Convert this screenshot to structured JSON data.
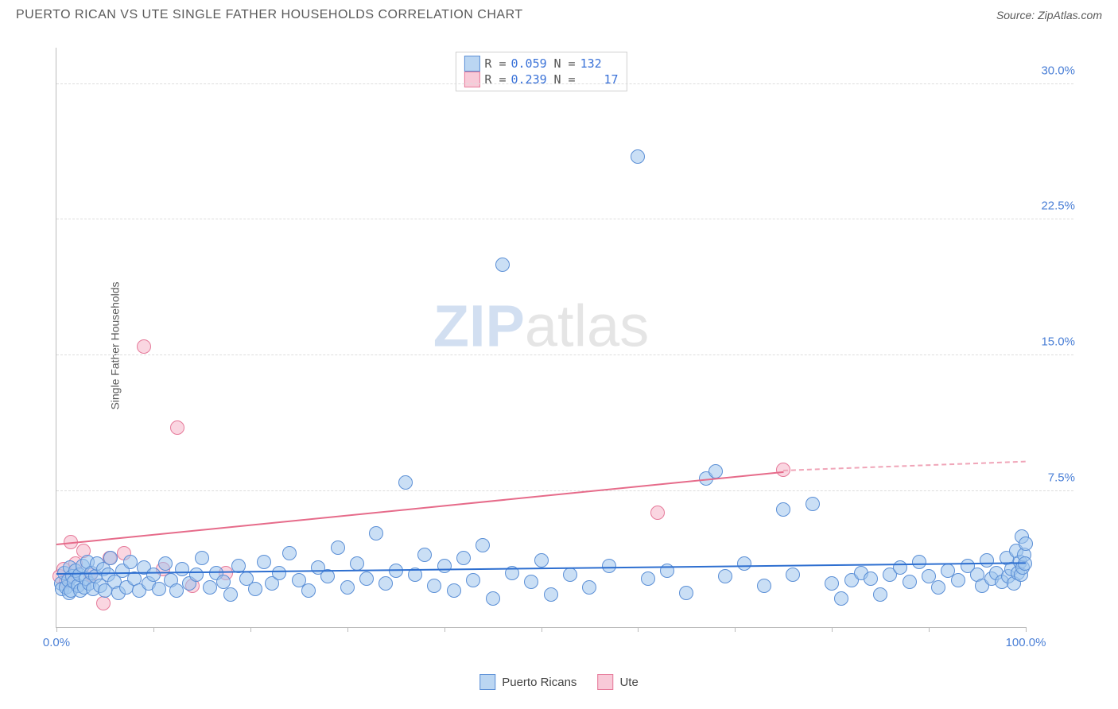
{
  "header": {
    "title": "PUERTO RICAN VS UTE SINGLE FATHER HOUSEHOLDS CORRELATION CHART",
    "source_prefix": "Source: ",
    "source": "ZipAtlas.com"
  },
  "watermark": {
    "bold": "ZIP",
    "light": "atlas"
  },
  "chart": {
    "type": "scatter",
    "ylabel": "Single Father Households",
    "xlim": [
      0,
      100
    ],
    "ylim": [
      0,
      32
    ],
    "y_ticks": [
      7.5,
      15.0,
      22.5,
      30.0
    ],
    "y_tick_labels": [
      "7.5%",
      "15.0%",
      "22.5%",
      "30.0%"
    ],
    "x_ticks": [
      0,
      10,
      20,
      30,
      40,
      50,
      60,
      70,
      80,
      90,
      100
    ],
    "x_tick_labels": {
      "0": "0.0%",
      "100": "100.0%"
    },
    "background_color": "#ffffff",
    "grid_color": "#dddddd",
    "series_a": {
      "label": "Puerto Ricans",
      "color_fill": "#9ec5ec",
      "color_stroke": "#5b8fd6",
      "marker_radius": 8,
      "R": "0.059",
      "N": "132",
      "trend": {
        "x0": 0,
        "y0": 2.9,
        "x1": 100,
        "y1": 3.5,
        "color": "#2e6fd0"
      },
      "points": [
        [
          0.5,
          2.4
        ],
        [
          0.6,
          2.1
        ],
        [
          0.8,
          3.0
        ],
        [
          1.0,
          2.2
        ],
        [
          1.2,
          2.6
        ],
        [
          1.3,
          1.9
        ],
        [
          1.4,
          3.3
        ],
        [
          1.5,
          2.0
        ],
        [
          1.6,
          2.8
        ],
        [
          1.8,
          2.5
        ],
        [
          2.0,
          3.1
        ],
        [
          2.2,
          2.3
        ],
        [
          2.4,
          2.9
        ],
        [
          2.5,
          2.0
        ],
        [
          2.7,
          3.4
        ],
        [
          2.9,
          2.2
        ],
        [
          3.0,
          2.7
        ],
        [
          3.2,
          3.6
        ],
        [
          3.4,
          2.4
        ],
        [
          3.6,
          3.0
        ],
        [
          3.8,
          2.1
        ],
        [
          4.0,
          2.8
        ],
        [
          4.2,
          3.5
        ],
        [
          4.5,
          2.3
        ],
        [
          4.8,
          3.2
        ],
        [
          5.0,
          2.0
        ],
        [
          5.3,
          2.9
        ],
        [
          5.6,
          3.8
        ],
        [
          6.0,
          2.5
        ],
        [
          6.4,
          1.9
        ],
        [
          6.8,
          3.1
        ],
        [
          7.2,
          2.2
        ],
        [
          7.6,
          3.6
        ],
        [
          8.0,
          2.7
        ],
        [
          8.5,
          2.0
        ],
        [
          9.0,
          3.3
        ],
        [
          9.5,
          2.4
        ],
        [
          10.0,
          2.9
        ],
        [
          10.6,
          2.1
        ],
        [
          11.2,
          3.5
        ],
        [
          11.8,
          2.6
        ],
        [
          12.4,
          2.0
        ],
        [
          13.0,
          3.2
        ],
        [
          13.7,
          2.4
        ],
        [
          14.4,
          2.9
        ],
        [
          15.0,
          3.8
        ],
        [
          15.8,
          2.2
        ],
        [
          16.5,
          3.0
        ],
        [
          17.2,
          2.5
        ],
        [
          18.0,
          1.8
        ],
        [
          18.8,
          3.4
        ],
        [
          19.6,
          2.7
        ],
        [
          20.5,
          2.1
        ],
        [
          21.4,
          3.6
        ],
        [
          22.2,
          2.4
        ],
        [
          23.0,
          3.0
        ],
        [
          24.0,
          4.1
        ],
        [
          25.0,
          2.6
        ],
        [
          26.0,
          2.0
        ],
        [
          27.0,
          3.3
        ],
        [
          28.0,
          2.8
        ],
        [
          29.0,
          4.4
        ],
        [
          30.0,
          2.2
        ],
        [
          31.0,
          3.5
        ],
        [
          32.0,
          2.7
        ],
        [
          33.0,
          5.2
        ],
        [
          34.0,
          2.4
        ],
        [
          35.0,
          3.1
        ],
        [
          36.0,
          8.0
        ],
        [
          37.0,
          2.9
        ],
        [
          38.0,
          4.0
        ],
        [
          39.0,
          2.3
        ],
        [
          40.0,
          3.4
        ],
        [
          41.0,
          2.0
        ],
        [
          42.0,
          3.8
        ],
        [
          43.0,
          2.6
        ],
        [
          44.0,
          4.5
        ],
        [
          45.0,
          1.6
        ],
        [
          46.0,
          20.0
        ],
        [
          47.0,
          3.0
        ],
        [
          49.0,
          2.5
        ],
        [
          50.0,
          3.7
        ],
        [
          51.0,
          1.8
        ],
        [
          53.0,
          2.9
        ],
        [
          55.0,
          2.2
        ],
        [
          57.0,
          3.4
        ],
        [
          60.0,
          26.0
        ],
        [
          61.0,
          2.7
        ],
        [
          63.0,
          3.1
        ],
        [
          65.0,
          1.9
        ],
        [
          67.0,
          8.2
        ],
        [
          68.0,
          8.6
        ],
        [
          69.0,
          2.8
        ],
        [
          71.0,
          3.5
        ],
        [
          73.0,
          2.3
        ],
        [
          75.0,
          6.5
        ],
        [
          76.0,
          2.9
        ],
        [
          78.0,
          6.8
        ],
        [
          80.0,
          2.4
        ],
        [
          81.0,
          1.6
        ],
        [
          82.0,
          2.6
        ],
        [
          83.0,
          3.0
        ],
        [
          84.0,
          2.7
        ],
        [
          85.0,
          1.8
        ],
        [
          86.0,
          2.9
        ],
        [
          87.0,
          3.3
        ],
        [
          88.0,
          2.5
        ],
        [
          89.0,
          3.6
        ],
        [
          90.0,
          2.8
        ],
        [
          91.0,
          2.2
        ],
        [
          92.0,
          3.1
        ],
        [
          93.0,
          2.6
        ],
        [
          94.0,
          3.4
        ],
        [
          95.0,
          2.9
        ],
        [
          95.5,
          2.3
        ],
        [
          96.0,
          3.7
        ],
        [
          96.5,
          2.7
        ],
        [
          97.0,
          3.0
        ],
        [
          97.5,
          2.5
        ],
        [
          98.0,
          3.8
        ],
        [
          98.2,
          2.8
        ],
        [
          98.5,
          3.2
        ],
        [
          98.8,
          2.4
        ],
        [
          99.0,
          4.2
        ],
        [
          99.2,
          3.0
        ],
        [
          99.4,
          3.6
        ],
        [
          99.5,
          2.9
        ],
        [
          99.6,
          5.0
        ],
        [
          99.7,
          3.3
        ],
        [
          99.8,
          4.0
        ],
        [
          99.9,
          3.5
        ],
        [
          100.0,
          4.6
        ]
      ]
    },
    "series_b": {
      "label": "Ute",
      "color_fill": "#f5b4c8",
      "color_stroke": "#e67a9a",
      "marker_radius": 8,
      "R": "0.239",
      "N": "17",
      "trend_solid": {
        "x0": 0,
        "y0": 4.5,
        "x1": 75,
        "y1": 8.5,
        "color": "#e66b8a"
      },
      "trend_dash": {
        "x0": 75,
        "y0": 8.5,
        "x1": 100,
        "y1": 9.0,
        "color": "#f0a5b8"
      },
      "points": [
        [
          0.3,
          2.8
        ],
        [
          0.7,
          3.2
        ],
        [
          1.0,
          2.5
        ],
        [
          1.5,
          4.7
        ],
        [
          2.0,
          3.5
        ],
        [
          2.8,
          4.2
        ],
        [
          3.5,
          2.9
        ],
        [
          4.8,
          1.3
        ],
        [
          5.5,
          3.8
        ],
        [
          7.0,
          4.1
        ],
        [
          9.0,
          15.5
        ],
        [
          11.0,
          3.2
        ],
        [
          12.5,
          11.0
        ],
        [
          14.0,
          2.3
        ],
        [
          17.5,
          3.0
        ],
        [
          62.0,
          6.3
        ],
        [
          75.0,
          8.7
        ]
      ]
    }
  },
  "legend_bottom": {
    "items": [
      {
        "label": "Puerto Ricans",
        "swatch": "a"
      },
      {
        "label": "Ute",
        "swatch": "b"
      }
    ]
  }
}
